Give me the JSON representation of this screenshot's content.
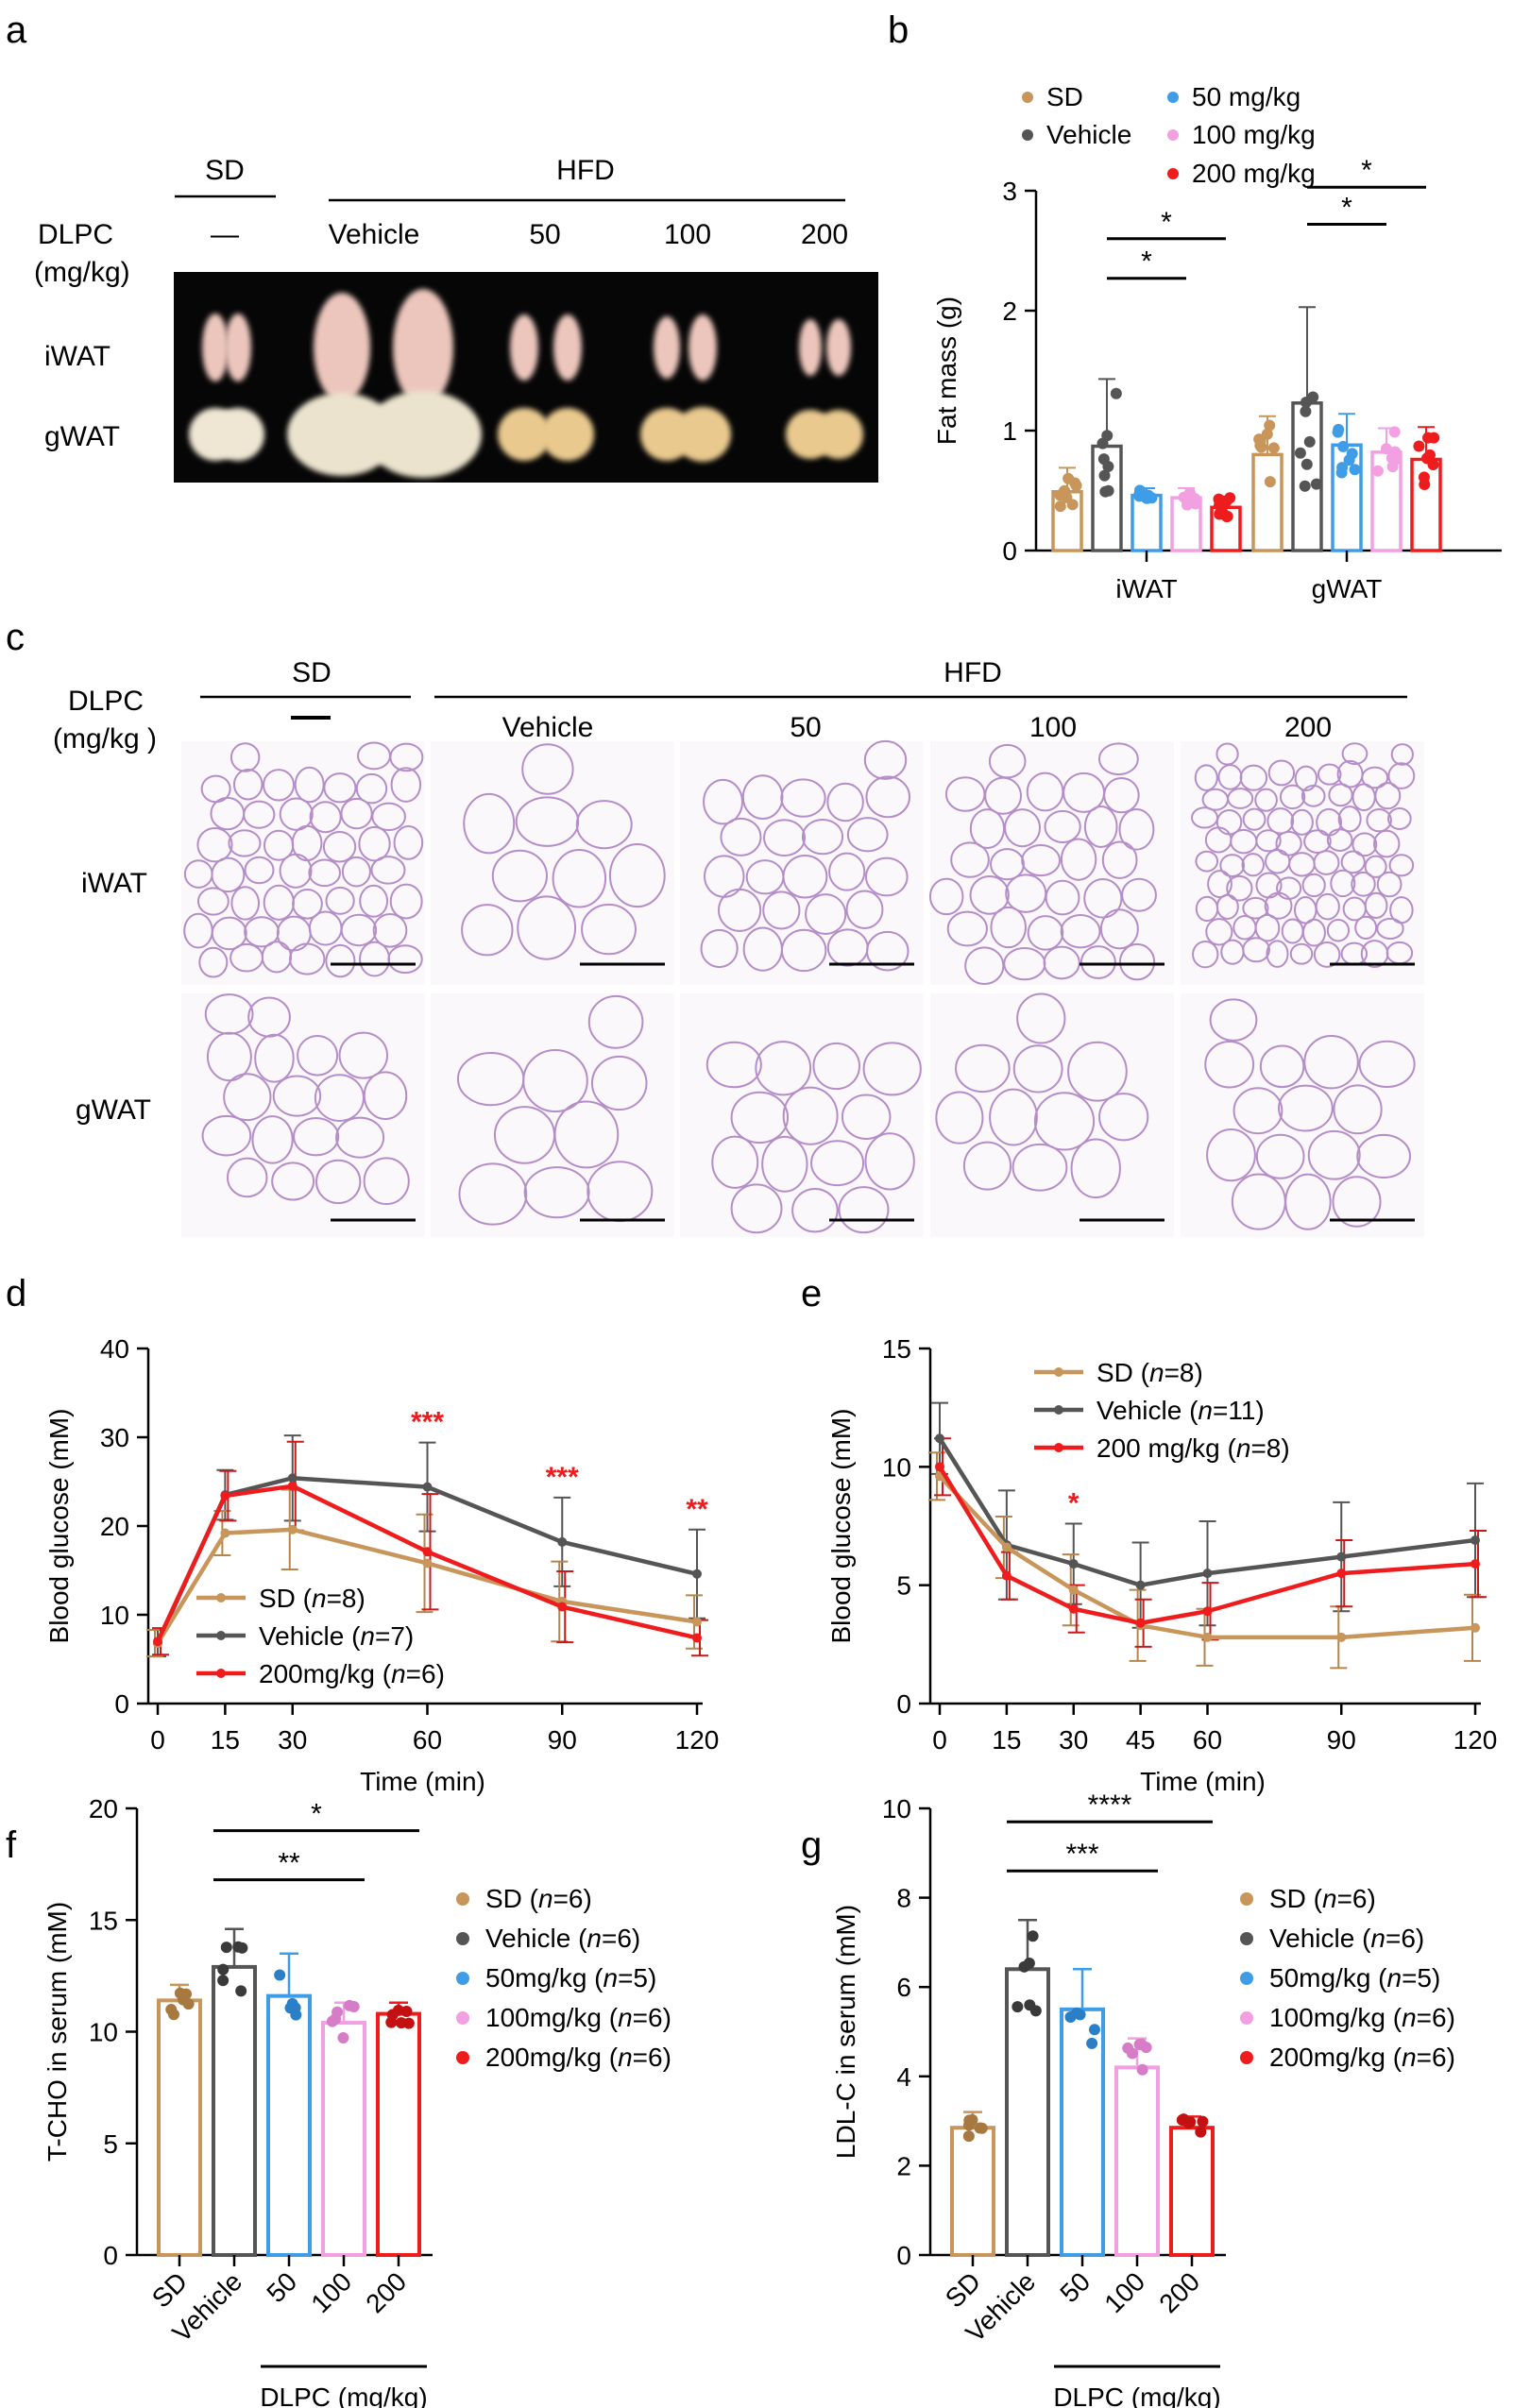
{
  "panel_letters": {
    "a": "a",
    "b": "b",
    "c": "c",
    "d": "d",
    "e": "e",
    "f": "f",
    "g": "g"
  },
  "colors": {
    "SD": "#c8955a",
    "Vehicle": "#555555",
    "50": "#3f9de8",
    "100": "#f3a0e3",
    "200": "#ee1c1c",
    "sig": "#ee1c1c"
  },
  "panel_a": {
    "sd_label": "SD",
    "hfd_label": "HFD",
    "dlpc_label": "DLPC",
    "unit_label": "(mg/kg)",
    "sd_dash": "—",
    "doses": [
      "Vehicle",
      "50",
      "100",
      "200"
    ],
    "rows": [
      "iWAT",
      "gWAT"
    ]
  },
  "panel_c": {
    "sd_label": "SD",
    "hfd_label": "HFD",
    "dlpc_label": "DLPC",
    "unit_label": "(mg/kg )",
    "doses": [
      "Vehicle",
      "50",
      "100",
      "200"
    ],
    "rows": [
      "iWAT",
      "gWAT"
    ]
  },
  "chart_data": [
    {
      "id": "b",
      "type": "bar",
      "title": "",
      "ylabel": "Fat mass (g)",
      "ylim": [
        0,
        3
      ],
      "yticks": [
        "0",
        "1",
        "2",
        "3"
      ],
      "groups": [
        "iWAT",
        "gWAT"
      ],
      "legend": [
        "SD",
        "Vehicle",
        "50 mg/kg",
        "100 mg/kg",
        "200 mg/kg"
      ],
      "series": [
        {
          "name": "SD",
          "values": [
            0.49,
            0.8
          ],
          "err": [
            0.2,
            0.32
          ]
        },
        {
          "name": "Vehicle",
          "values": [
            0.87,
            1.23
          ],
          "err": [
            0.56,
            0.8
          ]
        },
        {
          "name": "50 mg/kg",
          "values": [
            0.46,
            0.88
          ],
          "err": [
            0.06,
            0.26
          ]
        },
        {
          "name": "100 mg/kg",
          "values": [
            0.44,
            0.82
          ],
          "err": [
            0.08,
            0.2
          ]
        },
        {
          "name": "200 mg/kg",
          "values": [
            0.36,
            0.76
          ],
          "err": [
            0.09,
            0.27
          ]
        }
      ],
      "significance": [
        {
          "label": "*",
          "group": 0,
          "from": 1,
          "to": 3,
          "y": 2.27
        },
        {
          "label": "*",
          "group": 0,
          "from": 1,
          "to": 4,
          "y": 2.6
        },
        {
          "label": "*",
          "group": 1,
          "from": 1,
          "to": 3,
          "y": 2.72
        },
        {
          "label": "*",
          "group": 1,
          "from": 1,
          "to": 4,
          "y": 3.03
        }
      ]
    },
    {
      "id": "d",
      "type": "line",
      "title": "",
      "xlabel": "Time (min)",
      "ylabel": "Blood glucose (mM)",
      "x": [
        0,
        15,
        30,
        60,
        90,
        120
      ],
      "xlim": [
        0,
        120
      ],
      "ylim": [
        0,
        40
      ],
      "xticks": [
        "0",
        "15",
        "30",
        "60",
        "90",
        "120"
      ],
      "yticks": [
        "0",
        "10",
        "20",
        "30",
        "40"
      ],
      "series": [
        {
          "name": "SD",
          "n": "8",
          "values": [
            6.8,
            19.2,
            19.6,
            15.8,
            11.5,
            9.2
          ],
          "err": [
            1.5,
            2.5,
            4.5,
            5.5,
            4.5,
            3.0
          ]
        },
        {
          "name": "Vehicle",
          "n": "7",
          "values": [
            6.8,
            23.5,
            25.4,
            24.4,
            18.2,
            14.6
          ],
          "err": [
            1.5,
            2.8,
            4.8,
            5.0,
            5.0,
            5.0
          ]
        },
        {
          "name": "200mg/kg",
          "n": "6",
          "values": [
            7.0,
            23.4,
            24.5,
            17.1,
            10.9,
            7.4
          ],
          "err": [
            1.5,
            2.8,
            5.0,
            6.5,
            4.0,
            2.0
          ]
        }
      ],
      "annotations": [
        {
          "x": 60,
          "text": "***"
        },
        {
          "x": 90,
          "text": "***"
        },
        {
          "x": 120,
          "text": "**"
        }
      ]
    },
    {
      "id": "e",
      "type": "line",
      "title": "",
      "xlabel": "Time (min)",
      "ylabel": "Blood glucose (mM)",
      "x": [
        0,
        15,
        30,
        45,
        60,
        90,
        120
      ],
      "xlim": [
        0,
        120
      ],
      "ylim": [
        0,
        15
      ],
      "xticks": [
        "0",
        "15",
        "30",
        "45",
        "60",
        "90",
        "120"
      ],
      "yticks": [
        "0",
        "5",
        "10",
        "15"
      ],
      "series": [
        {
          "name": "SD",
          "n": "8",
          "values": [
            9.6,
            6.6,
            4.8,
            3.3,
            2.8,
            2.8,
            3.2
          ],
          "err": [
            1.0,
            1.3,
            1.5,
            1.5,
            1.2,
            1.3,
            1.4
          ]
        },
        {
          "name": "Vehicle",
          "n": "11",
          "values": [
            11.2,
            6.7,
            5.9,
            5.0,
            5.5,
            6.2,
            6.9
          ],
          "err": [
            1.5,
            2.3,
            1.7,
            1.8,
            2.2,
            2.3,
            2.4
          ]
        },
        {
          "name": "200 mg/kg",
          "n": "8",
          "values": [
            10.0,
            5.4,
            4.0,
            3.4,
            3.9,
            5.5,
            5.9
          ],
          "err": [
            1.2,
            1.0,
            1.0,
            1.0,
            1.2,
            1.4,
            1.4
          ]
        }
      ],
      "annotations": [
        {
          "x": 30,
          "text": "*"
        }
      ]
    },
    {
      "id": "f",
      "type": "bar",
      "title": "",
      "ylabel": "T-CHO in serum (mM)",
      "ylim": [
        0,
        20
      ],
      "yticks": [
        "0",
        "5",
        "10",
        "15",
        "20"
      ],
      "categories": [
        "SD",
        "Vehicle",
        "50",
        "100",
        "200"
      ],
      "xgroup_label": "DLPC (mg/kg)",
      "legend": [
        {
          "name": "SD",
          "n": "6"
        },
        {
          "name": "Vehicle",
          "n": "6"
        },
        {
          "name": "50mg/kg",
          "n": "5"
        },
        {
          "name": "100mg/kg",
          "n": "6"
        },
        {
          "name": "200mg/kg",
          "n": "6"
        }
      ],
      "values": [
        11.4,
        12.9,
        11.6,
        10.4,
        10.8
      ],
      "err": [
        0.7,
        1.7,
        1.9,
        0.9,
        0.5
      ],
      "significance": [
        {
          "label": "**",
          "from": 1,
          "to": 3,
          "y": 16.8
        },
        {
          "label": "*",
          "from": 1,
          "to": 4,
          "y": 19.0
        }
      ]
    },
    {
      "id": "g",
      "type": "bar",
      "title": "",
      "ylabel": "LDL-C in serum (mM)",
      "ylim": [
        0,
        10
      ],
      "yticks": [
        "0",
        "2",
        "4",
        "6",
        "8",
        "10"
      ],
      "categories": [
        "SD",
        "Vehicle",
        "50",
        "100",
        "200"
      ],
      "xgroup_label": "DLPC (mg/kg)",
      "legend": [
        {
          "name": "SD",
          "n": "6"
        },
        {
          "name": "Vehicle",
          "n": "6"
        },
        {
          "name": "50mg/kg",
          "n": "5"
        },
        {
          "name": "100mg/kg",
          "n": "6"
        },
        {
          "name": "200mg/kg",
          "n": "6"
        }
      ],
      "values": [
        2.85,
        6.4,
        5.5,
        4.2,
        2.85
      ],
      "err": [
        0.35,
        1.1,
        0.9,
        0.65,
        0.25
      ],
      "significance": [
        {
          "label": "***",
          "from": 1,
          "to": 3,
          "y": 8.6
        },
        {
          "label": "****",
          "from": 1,
          "to": 4,
          "y": 9.7
        }
      ]
    }
  ]
}
